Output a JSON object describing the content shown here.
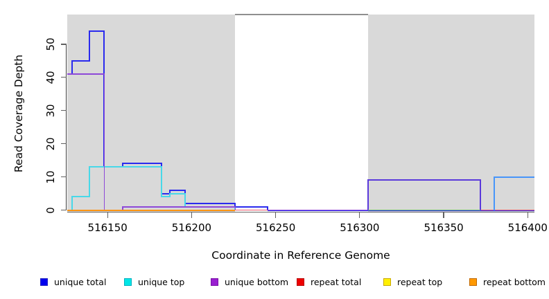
{
  "chart_data": {
    "type": "line",
    "step": "step-after",
    "title": "",
    "xlabel": "Coordinate in Reference Genome",
    "ylabel": "Read Coverage Depth",
    "xlim": [
      516126,
      516404
    ],
    "ylim": [
      0,
      58
    ],
    "x_ticks": [
      "516150",
      "516200",
      "516250",
      "516300",
      "516350",
      "516400"
    ],
    "x_tick_values": [
      516150,
      516200,
      516250,
      516300,
      516350,
      516400
    ],
    "y_ticks": [
      "0",
      "10",
      "20",
      "30",
      "40",
      "50"
    ],
    "y_tick_values": [
      0,
      10,
      20,
      30,
      40,
      50
    ],
    "grid": false,
    "shaded_regions": {
      "color": "#d9d9d9",
      "coords": [
        [
          516126,
          516226
        ],
        [
          516305,
          516404
        ]
      ]
    },
    "gap_top_line": {
      "color": "#8f8f8f",
      "span": [
        516226,
        516305
      ]
    },
    "series": [
      {
        "name": "unique total",
        "color": "#2a2aee",
        "width": 2,
        "segments": [
          [
            [
              516126,
              41
            ],
            [
              516129,
              45
            ],
            [
              516139,
              54
            ],
            [
              516148,
              13
            ],
            [
              516159,
              14
            ],
            [
              516182,
              5
            ],
            [
              516187,
              6
            ],
            [
              516196,
              2
            ],
            [
              516226,
              1
            ],
            [
              516245,
              0
            ],
            [
              516404,
              0
            ]
          ]
        ]
      },
      {
        "name": "unique top",
        "color": "#48d8e8",
        "width": 2,
        "segments": [
          [
            [
              516126,
              0
            ],
            [
              516129,
              4
            ],
            [
              516139,
              13
            ],
            [
              516182,
              4
            ],
            [
              516187,
              5
            ],
            [
              516196,
              1
            ],
            [
              516226,
              0
            ]
          ]
        ]
      },
      {
        "name": "unique bottom",
        "color": "#8d48d8",
        "width": 1.6,
        "segments": [
          [
            [
              516126,
              41
            ],
            [
              516148,
              0
            ],
            [
              516159,
              1
            ],
            [
              516226,
              0
            ],
            [
              516305,
              0
            ]
          ],
          [
            [
              516372,
              0
            ],
            [
              516404,
              0
            ]
          ]
        ]
      },
      {
        "name": "repeat total",
        "color": "#e8566a",
        "width": 1.6,
        "segments": [
          [
            [
              516226,
              0
            ],
            [
              516245,
              0
            ]
          ],
          [
            [
              516372,
              0
            ],
            [
              516404,
              0
            ]
          ]
        ]
      },
      {
        "name": "repeat top",
        "color": "#ffee00",
        "width": 1.6,
        "segments": []
      },
      {
        "name": "repeat bottom",
        "color": "#ff9310",
        "width": 2,
        "segments": [
          [
            [
              516126,
              0
            ],
            [
              516226,
              0
            ]
          ]
        ]
      }
    ],
    "overlays": [
      {
        "name": "unique-block-516305-516372-depth9",
        "color": "#5a39db",
        "width": 2,
        "segments": [
          [
            [
              516305,
              0
            ],
            [
              516305,
              9
            ],
            [
              516372,
              9
            ],
            [
              516372,
              0
            ]
          ]
        ]
      },
      {
        "name": "baseline-green-516305-516372",
        "color": "#69bd69",
        "width": 1.6,
        "segments": [
          [
            [
              516305,
              0
            ],
            [
              516372,
              0
            ]
          ]
        ]
      },
      {
        "name": "unique-block-516380-516404-depth10",
        "color": "#4795fa",
        "width": 2,
        "segments": [
          [
            [
              516380,
              0
            ],
            [
              516380,
              10
            ],
            [
              516404,
              10
            ]
          ]
        ]
      }
    ]
  },
  "legend": {
    "items": [
      {
        "label": "unique total",
        "fill": "#0000ee",
        "border": "#2020c0"
      },
      {
        "label": "unique top",
        "fill": "#00e6e6",
        "border": "#00b0c0"
      },
      {
        "label": "unique bottom",
        "fill": "#991fd0",
        "border": "#7a10a8"
      },
      {
        "label": "repeat total",
        "fill": "#ee0000",
        "border": "#b80000"
      },
      {
        "label": "repeat top",
        "fill": "#fff000",
        "border": "#c8a800"
      },
      {
        "label": "repeat bottom",
        "fill": "#ff9900",
        "border": "#c06800"
      }
    ]
  }
}
